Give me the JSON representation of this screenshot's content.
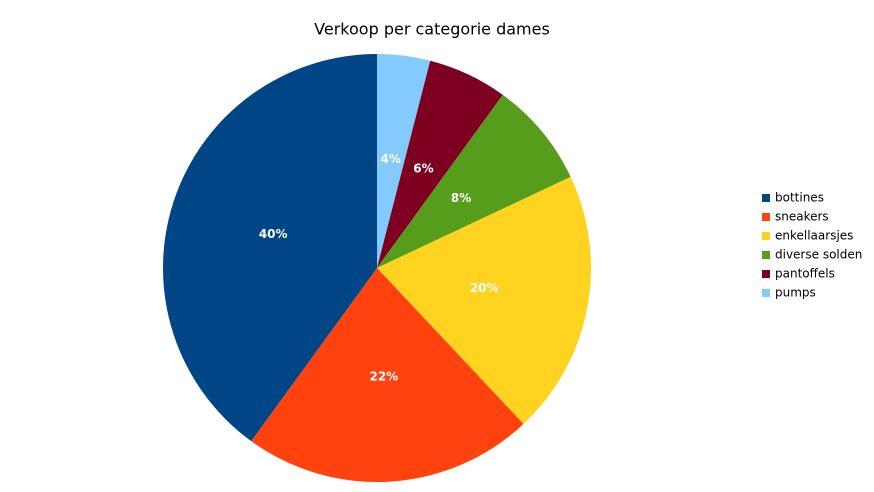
{
  "chart_data": {
    "type": "pie",
    "title": "Verkoop per categorie dames",
    "categories": [
      "bottines",
      "sneakers",
      "enkellaarsjes",
      "diverse solden",
      "pantoffels",
      "pumps"
    ],
    "values": [
      40,
      22,
      20,
      8,
      6,
      4
    ],
    "value_labels": [
      "40%",
      "22%",
      "20%",
      "8%",
      "6%",
      "4%"
    ],
    "colors": [
      "#004586",
      "#ff420e",
      "#ffd320",
      "#579d1c",
      "#7e0021",
      "#83caff"
    ],
    "legend": "right"
  }
}
